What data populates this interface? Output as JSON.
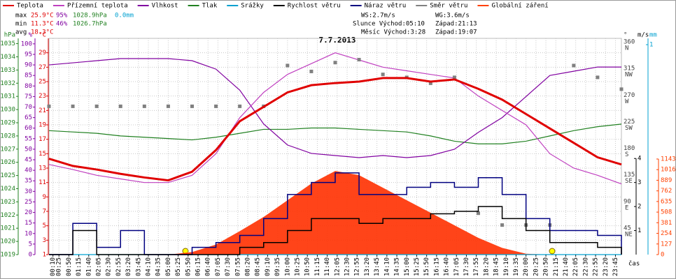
{
  "chart_data": {
    "type": "line",
    "title": "7.7.2013",
    "legend": [
      {
        "name": "Teplota",
        "color": "#e00000"
      },
      {
        "name": "Přízemní teplota",
        "color": "#c040c0"
      },
      {
        "name": "Vlhkost",
        "color": "#8000a0"
      },
      {
        "name": "Tlak",
        "color": "#208020"
      },
      {
        "name": "Srážky",
        "color": "#00a0d0"
      },
      {
        "name": "Rychlost větru",
        "color": "#000000"
      },
      {
        "name": "Náraz větru",
        "color": "#000080"
      },
      {
        "name": "Směr větru",
        "color": "#808080"
      },
      {
        "name": "Globální záření",
        "color": "#ff4000"
      }
    ],
    "stats": [
      [
        {
          "text": "max",
          "color": "#000000"
        },
        {
          "text": "25.9°C",
          "color": "#e00000"
        },
        {
          "text": "95%",
          "color": "#8000a0"
        },
        {
          "text": "1028.9hPa",
          "color": "#208020"
        },
        {
          "text": "0.0mm",
          "color": "#00a0d0"
        }
      ],
      [
        {
          "text": "min",
          "color": "#000000"
        },
        {
          "text": "11.3°C",
          "color": "#e00000"
        },
        {
          "text": "46%",
          "color": "#8000a0"
        },
        {
          "text": "1026.7hPa",
          "color": "#208020"
        }
      ],
      [
        {
          "text": "avg",
          "color": "#000000"
        },
        {
          "text": "18.3°C",
          "color": "#e00000"
        }
      ]
    ],
    "info": {
      "ws": "WS:2.7m/s",
      "wg": "WG:3.6m/s",
      "sun": "Slunce Východ:05:10",
      "sun_set": "Západ:21:13",
      "moon": "Měsíc Východ:3:28",
      "moon_set": "Západ:19:07"
    },
    "xlabel": "čas",
    "xlim": [
      0,
      1440
    ],
    "xticks": [
      {
        "value": 10,
        "label": "00:10"
      },
      {
        "value": 25,
        "label": "00:25"
      },
      {
        "value": 50,
        "label": "00:50"
      },
      {
        "value": 75,
        "label": "01:15"
      },
      {
        "value": 100,
        "label": "01:40"
      },
      {
        "value": 125,
        "label": "02:05"
      },
      {
        "value": 150,
        "label": "02:30"
      },
      {
        "value": 175,
        "label": "02:55"
      },
      {
        "value": 200,
        "label": "03:20"
      },
      {
        "value": 225,
        "label": "03:45"
      },
      {
        "value": 250,
        "label": "04:10"
      },
      {
        "value": 275,
        "label": "04:35"
      },
      {
        "value": 300,
        "label": "05:00"
      },
      {
        "value": 325,
        "label": "05:25"
      },
      {
        "value": 350,
        "label": "05:50"
      },
      {
        "value": 375,
        "label": "06:15"
      },
      {
        "value": 400,
        "label": "06:40"
      },
      {
        "value": 425,
        "label": "07:05"
      },
      {
        "value": 450,
        "label": "07:30"
      },
      {
        "value": 475,
        "label": "07:55"
      },
      {
        "value": 500,
        "label": "08:20"
      },
      {
        "value": 525,
        "label": "08:45"
      },
      {
        "value": 550,
        "label": "09:10"
      },
      {
        "value": 575,
        "label": "09:35"
      },
      {
        "value": 600,
        "label": "10:00"
      },
      {
        "value": 625,
        "label": "10:25"
      },
      {
        "value": 650,
        "label": "10:50"
      },
      {
        "value": 675,
        "label": "11:15"
      },
      {
        "value": 700,
        "label": "11:40"
      },
      {
        "value": 725,
        "label": "12:05"
      },
      {
        "value": 750,
        "label": "12:30"
      },
      {
        "value": 775,
        "label": "12:55"
      },
      {
        "value": 800,
        "label": "13:20"
      },
      {
        "value": 825,
        "label": "13:45"
      },
      {
        "value": 850,
        "label": "14:10"
      },
      {
        "value": 875,
        "label": "14:35"
      },
      {
        "value": 900,
        "label": "15:00"
      },
      {
        "value": 925,
        "label": "15:25"
      },
      {
        "value": 950,
        "label": "15:50"
      },
      {
        "value": 975,
        "label": "16:15"
      },
      {
        "value": 1000,
        "label": "16:40"
      },
      {
        "value": 1025,
        "label": "17:05"
      },
      {
        "value": 1050,
        "label": "17:30"
      },
      {
        "value": 1075,
        "label": "17:55"
      },
      {
        "value": 1100,
        "label": "18:20"
      },
      {
        "value": 1125,
        "label": "18:45"
      },
      {
        "value": 1150,
        "label": "19:10"
      },
      {
        "value": 1175,
        "label": "19:35"
      },
      {
        "value": 1200,
        "label": "20:00"
      },
      {
        "value": 1225,
        "label": "20:25"
      },
      {
        "value": 1250,
        "label": "20:50"
      },
      {
        "value": 1275,
        "label": "21:15"
      },
      {
        "value": 1300,
        "label": "21:40"
      },
      {
        "value": 1325,
        "label": "22:05"
      },
      {
        "value": 1350,
        "label": "22:30"
      },
      {
        "value": 1375,
        "label": "22:55"
      },
      {
        "value": 1400,
        "label": "23:20"
      },
      {
        "value": 1425,
        "label": "23:45"
      }
    ],
    "axes": {
      "hpa": {
        "unit": "hPa",
        "color": "#208020",
        "ylim": [
          1019,
          1035.4
        ],
        "yticks": [
          1019,
          1020,
          1021,
          1022,
          1023,
          1024,
          1025,
          1026,
          1027,
          1028,
          1029,
          1030,
          1031,
          1032,
          1033,
          1034,
          1035
        ]
      },
      "pct": {
        "unit": "%",
        "color": "#8000a0",
        "ylim": [
          0,
          102.6
        ],
        "yticks": [
          0,
          5,
          10,
          15,
          20,
          25,
          30,
          35,
          40,
          45,
          50,
          55,
          60,
          65,
          70,
          75,
          80,
          85,
          90,
          95,
          100
        ]
      },
      "temp": {
        "unit": "°C",
        "color": "#e00000",
        "ylim": [
          1,
          31
        ],
        "yticks": [
          1,
          3,
          5,
          7,
          9,
          11,
          13,
          15,
          17,
          19,
          21,
          23,
          25,
          27,
          29
        ],
        "grid": true
      },
      "dir": {
        "unit": "°",
        "color": "#404040",
        "ylim": [
          0,
          366
        ],
        "yticks": [
          45,
          90,
          135,
          180,
          225,
          270,
          315,
          360
        ],
        "compass": [
          "NE",
          "E",
          "SE",
          "S",
          "SW",
          "W",
          "NW",
          "N"
        ]
      },
      "ms": {
        "unit": "m/s",
        "color": "#000000",
        "ylim": [
          0,
          9
        ],
        "yticks": [
          1,
          2,
          3,
          4
        ]
      },
      "mm": {
        "unit": "mm",
        "color": "#00a0d0",
        "ylim": [
          0,
          1.03
        ],
        "yticks": [
          1
        ]
      },
      "rad": {
        "color": "#ff4000",
        "ylim": [
          0,
          2586
        ],
        "yticks": [
          0,
          127,
          254,
          381,
          508,
          635,
          762,
          889,
          1016,
          1143
        ]
      }
    },
    "x": [
      0,
      60,
      120,
      180,
      240,
      300,
      360,
      420,
      480,
      540,
      600,
      660,
      720,
      780,
      840,
      900,
      960,
      1020,
      1080,
      1140,
      1200,
      1260,
      1320,
      1380,
      1440
    ],
    "series": [
      {
        "name": "Globální záření",
        "axis": "rad",
        "style": "area",
        "color": "#ff3000",
        "values": [
          0,
          0,
          0,
          0,
          0,
          0,
          30,
          120,
          280,
          450,
          650,
          850,
          1000,
          950,
          800,
          650,
          500,
          350,
          200,
          80,
          10,
          0,
          0,
          0,
          0
        ]
      },
      {
        "name": "Srážky",
        "axis": "mm",
        "style": "line",
        "color": "#00a0d0",
        "values": [
          0,
          0,
          0,
          0,
          0,
          0,
          0,
          0,
          0,
          0,
          0,
          0,
          0,
          0,
          0,
          0,
          0,
          0,
          0,
          0,
          0,
          0,
          0,
          0,
          0
        ]
      },
      {
        "name": "Tlak",
        "axis": "hpa",
        "style": "line",
        "color": "#208020",
        "values": [
          1028.4,
          1028.3,
          1028.2,
          1028,
          1027.9,
          1027.8,
          1027.7,
          1027.9,
          1028.2,
          1028.5,
          1028.5,
          1028.6,
          1028.6,
          1028.5,
          1028.4,
          1028.3,
          1028,
          1027.6,
          1027.4,
          1027.4,
          1027.6,
          1028,
          1028.4,
          1028.7,
          1028.9
        ]
      },
      {
        "name": "Vlhkost",
        "axis": "pct",
        "style": "line",
        "color": "#8000a0",
        "values": [
          90,
          91,
          92,
          93,
          93,
          93,
          92,
          88,
          78,
          62,
          52,
          48,
          47,
          46,
          47,
          46,
          47,
          50,
          58,
          65,
          75,
          85,
          87,
          89,
          89
        ]
      },
      {
        "name": "Přízemní teplota",
        "axis": "temp",
        "style": "line",
        "color": "#c040c0",
        "values": [
          13.5,
          12.8,
          12,
          11.5,
          11,
          11,
          12,
          15,
          20,
          23.5,
          26,
          27.5,
          29,
          28,
          27,
          26.5,
          26,
          25.5,
          23,
          21,
          19,
          15,
          13,
          12,
          10.8
        ]
      },
      {
        "name": "Směr větru",
        "axis": "dir",
        "style": "points",
        "color": "#808080",
        "values": [
          251,
          251,
          251,
          251,
          251,
          251,
          251,
          251,
          251,
          251,
          320,
          310,
          325,
          330,
          305,
          300,
          290,
          300,
          70,
          50,
          50,
          50,
          320,
          300,
          280
        ]
      },
      {
        "name": "Náraz větru",
        "axis": "ms",
        "style": "step",
        "color": "#000080",
        "values": [
          0,
          1.3,
          0.3,
          1,
          0,
          0,
          0.3,
          0.5,
          0.8,
          1.5,
          2.5,
          3,
          3.4,
          2.5,
          2.5,
          2.8,
          3,
          2.8,
          3.2,
          2.5,
          1.5,
          1,
          1,
          0.8,
          0
        ]
      },
      {
        "name": "Rychlost větru",
        "axis": "ms",
        "style": "step",
        "color": "#000000",
        "values": [
          0,
          1,
          0,
          0,
          0,
          0,
          0,
          0,
          0.3,
          0.5,
          1,
          1.5,
          1.5,
          1.3,
          1.5,
          1.5,
          1.7,
          1.8,
          2,
          1.5,
          1,
          0.5,
          0.5,
          0.3,
          0
        ]
      },
      {
        "name": "Teplota",
        "axis": "temp",
        "style": "line",
        "color": "#e00000",
        "width": 3,
        "values": [
          14.3,
          13.3,
          12.8,
          12.2,
          11.7,
          11.3,
          12.5,
          15.5,
          19.5,
          21.5,
          23.5,
          24.5,
          24.8,
          25,
          25.5,
          25.5,
          25,
          25.3,
          24,
          22.5,
          20.5,
          18.5,
          16.5,
          14.5,
          13.5
        ]
      }
    ]
  }
}
